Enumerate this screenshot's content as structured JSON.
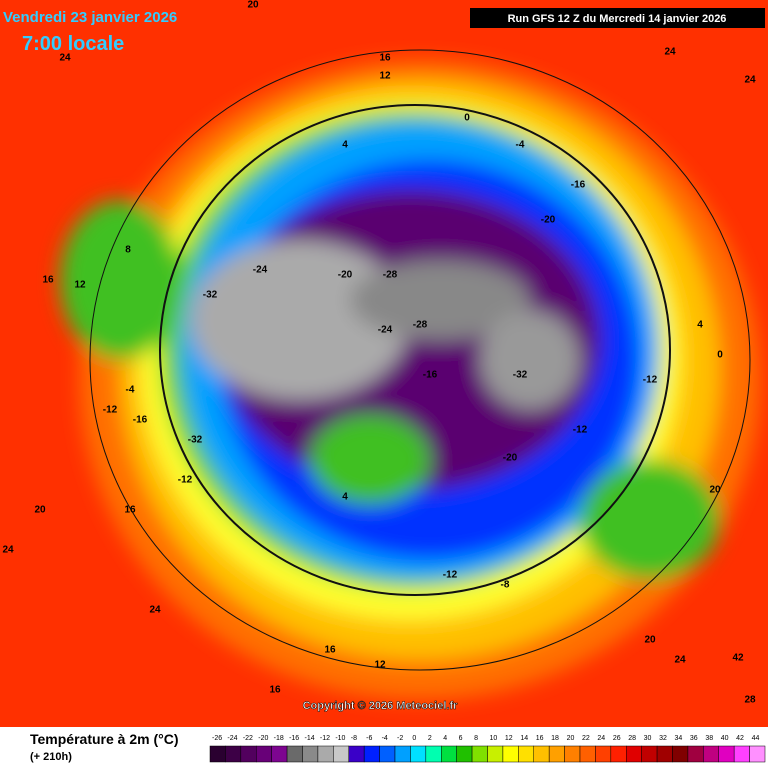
{
  "header": {
    "date": "Vendredi 23 janvier 2026",
    "time": "7:00 locale",
    "run": "Run GFS 12 Z du Mercredi 14 janvier 2026"
  },
  "map": {
    "copyright": "Copyright © 2026 Meteociel.fr",
    "labels": [
      "20",
      "24",
      "16",
      "12",
      "24",
      "24",
      "0",
      "4",
      "-4",
      "-16",
      "-20",
      "-24",
      "-32",
      "-28",
      "-20",
      "-28",
      "-24",
      "-32",
      "-16",
      "-12",
      "-16",
      "-32",
      "-12",
      "4",
      "-20",
      "-12",
      "-12",
      "0",
      "4",
      "-4",
      "8",
      "12",
      "16",
      "20",
      "24",
      "16",
      "24",
      "16",
      "16",
      "12",
      "-8",
      "-12",
      "20",
      "24",
      "28",
      "42",
      "20"
    ]
  },
  "legend": {
    "title": "Température à 2m (°C)",
    "subtitle": "(+ 210h)",
    "ticks": [
      -26,
      -24,
      -22,
      -20,
      -18,
      -16,
      -14,
      -12,
      -10,
      -8,
      -6,
      -4,
      -2,
      0,
      2,
      4,
      6,
      8,
      10,
      12,
      14,
      16,
      18,
      20,
      22,
      24,
      26,
      28,
      30,
      32,
      34,
      36,
      38,
      40,
      42,
      44
    ],
    "colors": [
      "#2a0030",
      "#3d0046",
      "#52005e",
      "#680078",
      "#7d0590",
      "#6a6a6a",
      "#8a8a8a",
      "#aaaaaa",
      "#c8c8c8",
      "#3a00c8",
      "#0020ff",
      "#0060ff",
      "#00a0ff",
      "#00e0ff",
      "#00ffb0",
      "#00e040",
      "#20c000",
      "#80e000",
      "#c8f000",
      "#ffff00",
      "#ffe000",
      "#ffc000",
      "#ffa000",
      "#ff8000",
      "#ff6000",
      "#ff4000",
      "#ff2000",
      "#e00000",
      "#c00000",
      "#a00000",
      "#800000",
      "#a00040",
      "#c00080",
      "#e000c0",
      "#ff40ff",
      "#ff90ff"
    ]
  }
}
